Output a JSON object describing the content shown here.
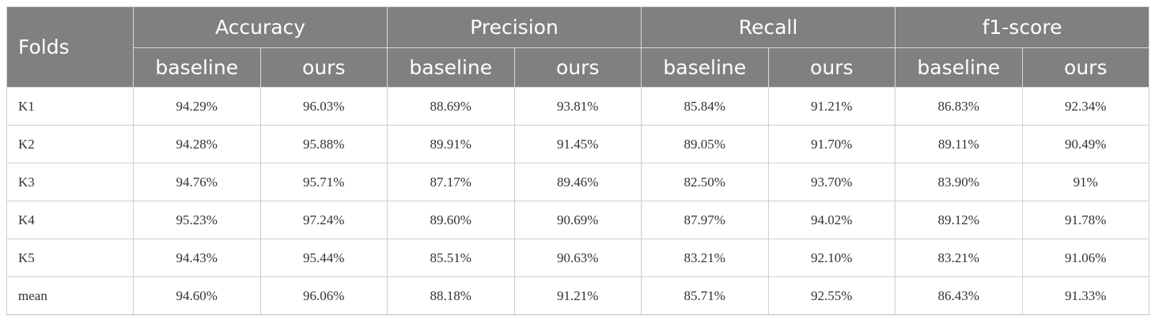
{
  "header": {
    "folds_label": "Folds",
    "groups": [
      "Accuracy",
      "Precision",
      "Recall",
      "f1-score"
    ],
    "subheaders": [
      "baseline",
      "ours",
      "baseline",
      "ours",
      "baseline",
      "ours",
      "baseline",
      "ours"
    ]
  },
  "rows": [
    {
      "fold": "K1",
      "values": [
        "94.29%",
        "96.03%",
        "88.69%",
        "93.81%",
        "85.84%",
        "91.21%",
        "86.83%",
        "92.34%"
      ]
    },
    {
      "fold": "K2",
      "values": [
        "94.28%",
        "95.88%",
        "89.91%",
        "91.45%",
        "89.05%",
        "91.70%",
        "89.11%",
        "90.49%"
      ]
    },
    {
      "fold": "K3",
      "values": [
        "94.76%",
        "95.71%",
        "87.17%",
        "89.46%",
        "82.50%",
        "93.70%",
        "83.90%",
        "91%"
      ]
    },
    {
      "fold": "K4",
      "values": [
        "95.23%",
        "97.24%",
        "89.60%",
        "90.69%",
        "87.97%",
        "94.02%",
        "89.12%",
        "91.78%"
      ]
    },
    {
      "fold": "K5",
      "values": [
        "94.43%",
        "95.44%",
        "85.51%",
        "90.63%",
        "83.21%",
        "92.10%",
        "83.21%",
        "91.06%"
      ]
    },
    {
      "fold": "mean",
      "values": [
        "94.60%",
        "96.06%",
        "88.18%",
        "91.21%",
        "85.71%",
        "92.55%",
        "86.43%",
        "91.33%"
      ]
    }
  ]
}
